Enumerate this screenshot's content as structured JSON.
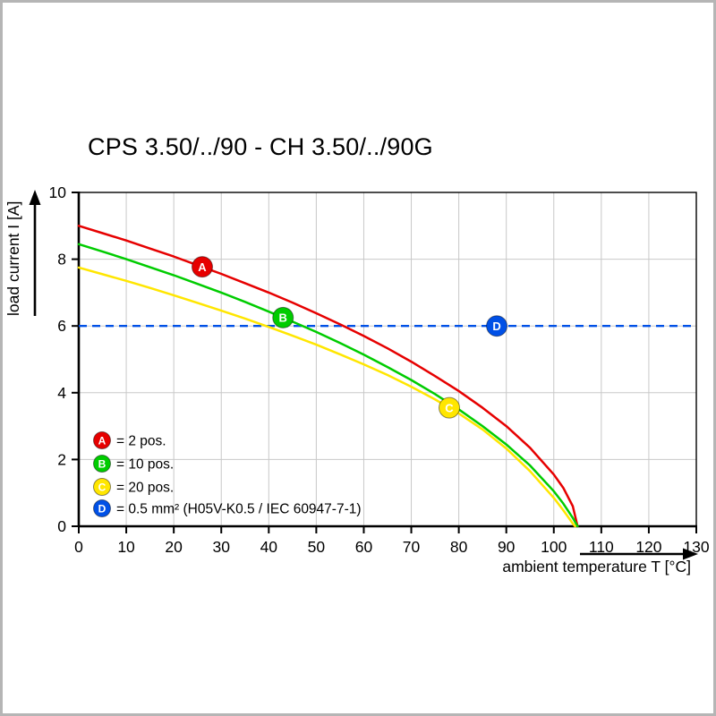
{
  "chart_data": {
    "type": "line",
    "title": "CPS 3.50/../90 - CH 3.50/../90G",
    "xlabel": "ambient temperature T [°C]",
    "ylabel": "load current I [A]",
    "xlim": [
      0,
      130
    ],
    "ylim": [
      0,
      10
    ],
    "x_ticks": [
      0,
      10,
      20,
      30,
      40,
      50,
      60,
      70,
      80,
      90,
      100,
      110,
      120,
      130
    ],
    "y_ticks": [
      0,
      2,
      4,
      6,
      8,
      10
    ],
    "grid": true,
    "grid_color": "#c8c8c8",
    "legend_position": "bottom-left",
    "series": [
      {
        "key": "A",
        "name": "2 pos.",
        "color": "#e60000",
        "marker_at": {
          "x": 26,
          "y": 7.77
        },
        "points": [
          [
            0,
            9.0
          ],
          [
            5,
            8.78
          ],
          [
            10,
            8.56
          ],
          [
            15,
            8.32
          ],
          [
            20,
            8.08
          ],
          [
            25,
            7.82
          ],
          [
            30,
            7.56
          ],
          [
            35,
            7.28
          ],
          [
            40,
            7.0
          ],
          [
            45,
            6.7
          ],
          [
            50,
            6.38
          ],
          [
            55,
            6.05
          ],
          [
            60,
            5.7
          ],
          [
            65,
            5.33
          ],
          [
            70,
            4.93
          ],
          [
            75,
            4.5
          ],
          [
            80,
            4.05
          ],
          [
            85,
            3.55
          ],
          [
            90,
            3.0
          ],
          [
            95,
            2.35
          ],
          [
            100,
            1.55
          ],
          [
            102,
            1.15
          ],
          [
            104,
            0.6
          ],
          [
            105,
            0
          ]
        ]
      },
      {
        "key": "B",
        "name": "10 pos.",
        "color": "#00cc00",
        "marker_at": {
          "x": 43,
          "y": 6.25
        },
        "points": [
          [
            0,
            8.45
          ],
          [
            5,
            8.23
          ],
          [
            10,
            8.0
          ],
          [
            15,
            7.76
          ],
          [
            20,
            7.52
          ],
          [
            25,
            7.26
          ],
          [
            30,
            7.0
          ],
          [
            35,
            6.72
          ],
          [
            40,
            6.43
          ],
          [
            45,
            6.13
          ],
          [
            50,
            5.82
          ],
          [
            55,
            5.49
          ],
          [
            60,
            5.14
          ],
          [
            65,
            4.77
          ],
          [
            70,
            4.38
          ],
          [
            75,
            3.96
          ],
          [
            80,
            3.5
          ],
          [
            85,
            3.0
          ],
          [
            90,
            2.45
          ],
          [
            95,
            1.82
          ],
          [
            100,
            1.05
          ],
          [
            102,
            0.68
          ],
          [
            104,
            0.25
          ],
          [
            105,
            0
          ]
        ]
      },
      {
        "key": "C",
        "name": "20 pos.",
        "color": "#ffe600",
        "marker_at": {
          "x": 78,
          "y": 3.55
        },
        "points": [
          [
            0,
            7.75
          ],
          [
            5,
            7.55
          ],
          [
            10,
            7.35
          ],
          [
            15,
            7.14
          ],
          [
            20,
            6.92
          ],
          [
            25,
            6.69
          ],
          [
            30,
            6.46
          ],
          [
            35,
            6.22
          ],
          [
            40,
            5.97
          ],
          [
            45,
            5.71
          ],
          [
            50,
            5.44
          ],
          [
            55,
            5.15
          ],
          [
            60,
            4.85
          ],
          [
            65,
            4.53
          ],
          [
            70,
            4.18
          ],
          [
            75,
            3.8
          ],
          [
            80,
            3.38
          ],
          [
            85,
            2.9
          ],
          [
            90,
            2.33
          ],
          [
            95,
            1.65
          ],
          [
            100,
            0.85
          ],
          [
            102,
            0.48
          ],
          [
            104,
            0.08
          ],
          [
            104.5,
            0
          ]
        ]
      }
    ],
    "reference_line": {
      "key": "D",
      "name": "0.5 mm² (H05V-K0.5 / IEC 60947-7-1)",
      "color": "#0050e6",
      "y": 6,
      "style": "dashed",
      "marker_at": {
        "x": 88,
        "y": 6
      }
    },
    "legend": [
      {
        "key": "A",
        "color": "#e60000",
        "text": "= 2 pos."
      },
      {
        "key": "B",
        "color": "#00cc00",
        "text": "= 10 pos."
      },
      {
        "key": "C",
        "color": "#ffe600",
        "text": "= 20 pos."
      },
      {
        "key": "D",
        "color": "#0050e6",
        "text": "= 0.5 mm² (H05V-K0.5 / IEC 60947-7-1)"
      }
    ]
  }
}
